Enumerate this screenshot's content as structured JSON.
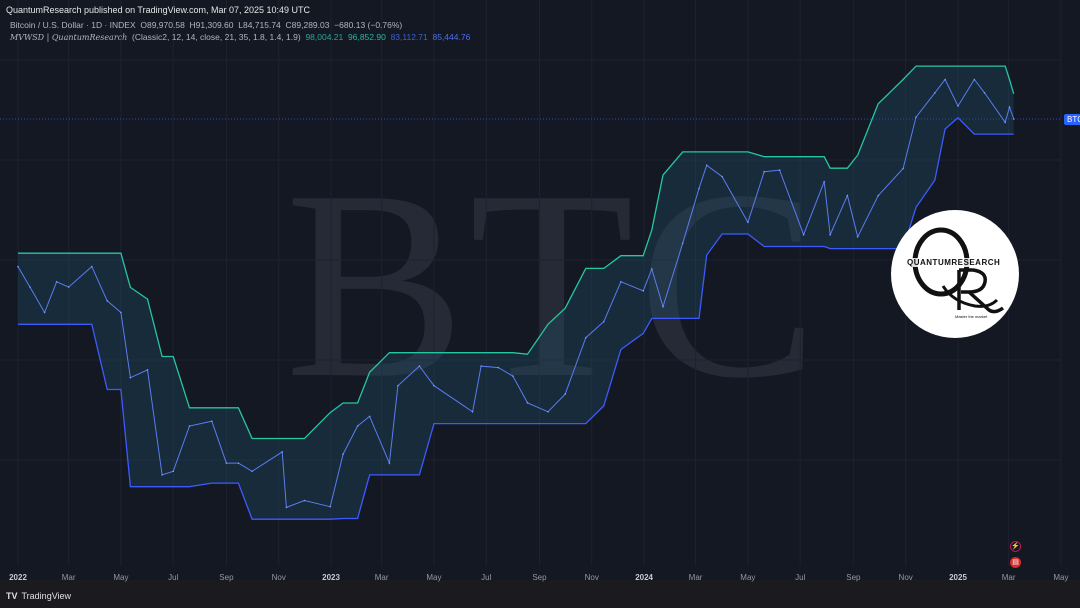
{
  "header": {
    "publish_line": "QuantumResearch published on TradingView.com, Mar 07, 2025 10:49 UTC",
    "symbol": "Bitcoin / U.S. Dollar · 1D · INDEX",
    "open": "O89,970.58",
    "high": "H91,309.60",
    "low": "L84,715.74",
    "close": "C89,289.03",
    "change": "−680.13 (−0.76%)",
    "indicator_name": "MVWSD | QuantumResearch",
    "indicator_params": "(Classic2, 12, 14, close, 21, 35, 1.8, 1.4, 1.9)",
    "indicator_values": [
      "98,004.21",
      "96,852.90",
      "83,112.71",
      "85,444.76"
    ]
  },
  "watermark": "BTC",
  "price_tag": "BTC",
  "logo": {
    "brand": "QUANTUMRESEARCH",
    "letters": "QR",
    "tagline": "Master the market"
  },
  "footer": {
    "brand": "TradingView",
    "icon": "tradingview-logo-icon"
  },
  "event_icons": [
    "lightning-icon",
    "us-flag-icon"
  ],
  "colors": {
    "background": "#141823",
    "upper_band": "#26c6a0",
    "lower_band": "#3d5afe",
    "price": "#5a7cf0",
    "tag": "#2962ff"
  },
  "chart_data": {
    "type": "line",
    "title": "",
    "xlabel": "",
    "ylabel": "",
    "y_scale": "log",
    "grid": true,
    "x_tick_labels": [
      "2022",
      "Mar",
      "May",
      "Jul",
      "Sep",
      "Nov",
      "2023",
      "Mar",
      "May",
      "Jul",
      "Sep",
      "Nov",
      "2024",
      "Mar",
      "May",
      "Jul",
      "Sep",
      "Nov",
      "2025",
      "Mar",
      "May"
    ],
    "current_price": 89289.03,
    "series": [
      {
        "x": [
          "2022-01-01",
          "2022-01-15",
          "2022-02-01",
          "2022-02-15",
          "2022-03-01",
          "2022-03-28",
          "2022-04-15",
          "2022-05-01",
          "2022-05-12",
          "2022-06-01",
          "2022-06-18",
          "2022-07-01",
          "2022-07-20",
          "2022-08-15",
          "2022-09-01",
          "2022-09-15",
          "2022-10-01",
          "2022-11-05",
          "2022-11-10",
          "2022-12-01",
          "2022-12-31",
          "2023-01-15",
          "2023-02-01",
          "2023-02-15",
          "2023-03-10",
          "2023-03-20",
          "2023-04-14",
          "2023-05-01",
          "2023-06-15",
          "2023-06-25",
          "2023-07-15",
          "2023-08-01",
          "2023-08-18",
          "2023-09-11",
          "2023-10-01",
          "2023-10-25",
          "2023-11-15",
          "2023-12-05",
          "2023-12-31",
          "2024-01-10",
          "2024-01-23",
          "2024-02-15",
          "2024-03-05",
          "2024-03-14",
          "2024-04-01",
          "2024-05-01",
          "2024-05-20",
          "2024-06-07",
          "2024-07-05",
          "2024-07-29",
          "2024-08-05",
          "2024-08-25",
          "2024-09-06",
          "2024-09-30",
          "2024-10-29",
          "2024-11-13",
          "2024-12-05",
          "2024-12-17",
          "2025-01-01",
          "2025-01-20",
          "2025-02-01",
          "2025-02-25",
          "2025-03-02",
          "2025-03-07"
        ],
        "y": [
          47000,
          43000,
          38500,
          44000,
          43000,
          47000,
          40500,
          38500,
          29000,
          30000,
          19000,
          19300,
          23500,
          24000,
          20000,
          20000,
          19300,
          21000,
          16500,
          17000,
          16550,
          20800,
          23500,
          24500,
          20000,
          28000,
          30500,
          28000,
          25000,
          30500,
          30300,
          29200,
          26000,
          25000,
          27000,
          34500,
          37000,
          44000,
          42300,
          46500,
          39500,
          52000,
          66000,
          73000,
          69500,
          57000,
          71000,
          71500,
          54000,
          68000,
          54000,
          64000,
          53500,
          64000,
          72000,
          90000,
          100000,
          106000,
          94500,
          106000,
          100000,
          88000,
          94000,
          89289
        ]
      }
    ]
  }
}
